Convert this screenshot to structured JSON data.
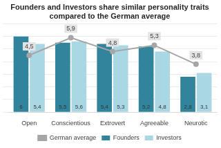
{
  "chart_data": {
    "type": "bar",
    "title": "Founders and Investors share similar personality traits compared to the German average",
    "categories": [
      "Open",
      "Conscientious",
      "Extrovert",
      "Agreeable",
      "Neurotic"
    ],
    "series": [
      {
        "name": "Founders",
        "color": "#31849b",
        "values": [
          6,
          5.5,
          5.4,
          5.2,
          2.8
        ],
        "value_labels": [
          "6",
          "5,5",
          "5,4",
          "5,2",
          "2,8"
        ]
      },
      {
        "name": "Investors",
        "color": "#a9d7e3",
        "values": [
          5.4,
          5.6,
          5.3,
          4.8,
          3.1
        ],
        "value_labels": [
          "5,4",
          "5,6",
          "5,3",
          "4,8",
          "3,1"
        ]
      },
      {
        "name": "German average",
        "type": "line",
        "color": "#a6a6a6",
        "marker": "circle",
        "line_style": "solid",
        "values": [
          4.5,
          5.9,
          4.8,
          5.3,
          3.8
        ],
        "value_labels": [
          "4,5",
          "5,9",
          "4,8",
          "5,3",
          "3,8"
        ]
      }
    ],
    "ylim": [
      0,
      7
    ],
    "yticks": [
      0,
      1,
      2,
      3,
      4,
      5,
      6,
      7
    ],
    "grid": true,
    "legend": "bottom",
    "data_labels": true,
    "tick_labels": "x"
  }
}
